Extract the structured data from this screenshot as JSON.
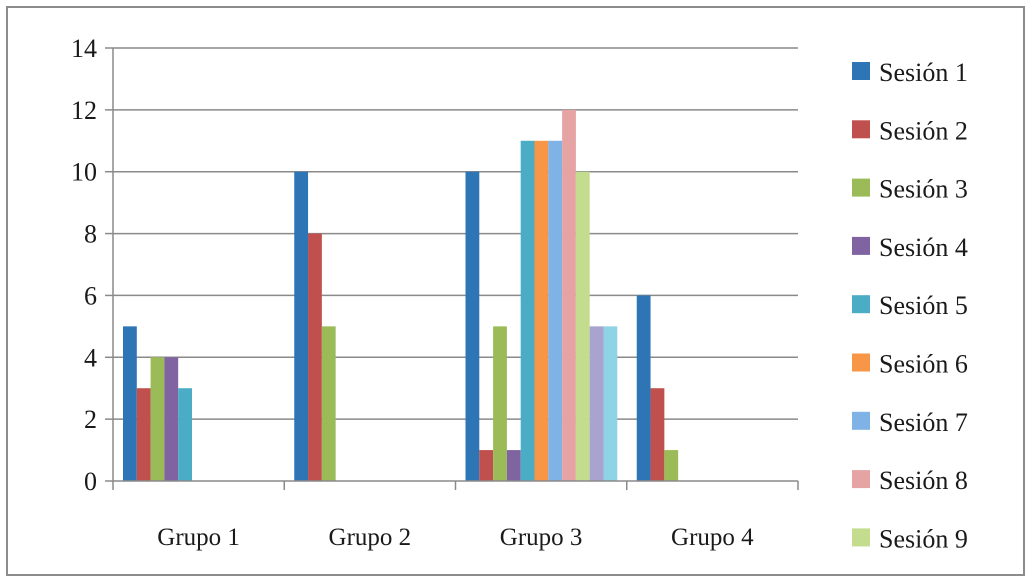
{
  "chart_data": {
    "type": "bar",
    "title": "",
    "xlabel": "",
    "ylabel": "",
    "categories": [
      "Grupo 1",
      "Grupo 2",
      "Grupo 3",
      "Grupo 4"
    ],
    "ylim": [
      0,
      14
    ],
    "yticks": [
      0,
      2,
      4,
      6,
      8,
      10,
      12,
      14
    ],
    "grid": "horizontal",
    "legend_position": "right",
    "series": [
      {
        "name": "Sesión 1",
        "color": "#2e75b6",
        "values": [
          5,
          10,
          10,
          6
        ]
      },
      {
        "name": "Sesión 2",
        "color": "#c0504d",
        "values": [
          3,
          8,
          1,
          3
        ]
      },
      {
        "name": "Sesión 3",
        "color": "#9bbb59",
        "values": [
          4,
          5,
          5,
          1
        ]
      },
      {
        "name": "Sesión 4",
        "color": "#8064a2",
        "values": [
          4,
          0,
          1,
          0
        ]
      },
      {
        "name": "Sesión 5",
        "color": "#4bacc6",
        "values": [
          3,
          0,
          11,
          0
        ]
      },
      {
        "name": "Sesión 6",
        "color": "#f79646",
        "values": [
          0,
          0,
          11,
          0
        ]
      },
      {
        "name": "Sesión 7",
        "color": "#7fb2e5",
        "values": [
          0,
          0,
          11,
          0
        ]
      },
      {
        "name": "Sesión 8",
        "color": "#e6a3a3",
        "values": [
          0,
          0,
          12,
          0
        ]
      },
      {
        "name": "Sesión 9",
        "color": "#c3dc8e",
        "values": [
          0,
          0,
          10,
          0
        ]
      },
      {
        "name": "",
        "color": "#a9a3cf",
        "values": [
          0,
          0,
          5,
          0
        ]
      },
      {
        "name": "",
        "color": "#8fd3e6",
        "values": [
          0,
          0,
          5,
          0
        ]
      }
    ]
  }
}
